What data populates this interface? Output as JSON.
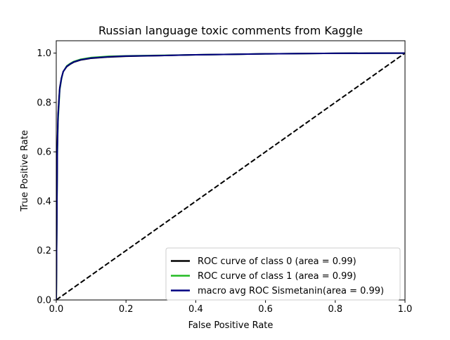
{
  "chart_data": {
    "type": "line",
    "title": "Russian language toxic comments from Kaggle",
    "xlabel": "False Positive Rate",
    "ylabel": "True Positive Rate",
    "xlim": [
      0.0,
      1.0
    ],
    "ylim": [
      0.0,
      1.05
    ],
    "xticks": [
      0.0,
      0.2,
      0.4,
      0.6,
      0.8,
      1.0
    ],
    "yticks": [
      0.0,
      0.2,
      0.4,
      0.6,
      0.8,
      1.0
    ],
    "xtick_labels": [
      "0.0",
      "0.2",
      "0.4",
      "0.6",
      "0.8",
      "1.0"
    ],
    "ytick_labels": [
      "0.0",
      "0.2",
      "0.4",
      "0.6",
      "0.8",
      "1.0"
    ],
    "grid": false,
    "legend_position": "lower-right",
    "series": [
      {
        "name": "ROC curve of class 0 (area = 0.99)",
        "color": "#000000",
        "dash": "solid",
        "x": [
          0.0,
          0.003,
          0.005,
          0.008,
          0.01,
          0.015,
          0.02,
          0.03,
          0.04,
          0.05,
          0.07,
          0.1,
          0.15,
          0.2,
          0.3,
          0.4,
          0.5,
          0.6,
          0.7,
          0.8,
          0.9,
          1.0
        ],
        "y": [
          0.0,
          0.62,
          0.75,
          0.82,
          0.86,
          0.9,
          0.925,
          0.945,
          0.955,
          0.963,
          0.972,
          0.979,
          0.984,
          0.987,
          0.99,
          0.993,
          0.995,
          0.997,
          0.998,
          0.999,
          0.9995,
          1.0
        ]
      },
      {
        "name": "ROC curve of class 1 (area = 0.99)",
        "color": "#22bb22",
        "dash": "solid",
        "x": [
          0.0,
          0.003,
          0.005,
          0.008,
          0.01,
          0.015,
          0.02,
          0.03,
          0.04,
          0.05,
          0.07,
          0.1,
          0.15,
          0.2,
          0.3,
          0.4,
          0.5,
          0.6,
          0.7,
          0.8,
          0.9,
          1.0
        ],
        "y": [
          0.0,
          0.58,
          0.72,
          0.8,
          0.85,
          0.895,
          0.925,
          0.948,
          0.958,
          0.966,
          0.975,
          0.982,
          0.987,
          0.989,
          0.991,
          0.993,
          0.995,
          0.997,
          0.998,
          0.999,
          0.9995,
          1.0
        ]
      },
      {
        "name": "macro avg ROC Sismetanin(area = 0.99)",
        "color": "#000080",
        "dash": "solid",
        "x": [
          0.0,
          0.003,
          0.005,
          0.008,
          0.01,
          0.015,
          0.02,
          0.03,
          0.04,
          0.05,
          0.07,
          0.1,
          0.15,
          0.2,
          0.3,
          0.4,
          0.5,
          0.6,
          0.7,
          0.8,
          0.9,
          1.0
        ],
        "y": [
          0.0,
          0.6,
          0.74,
          0.81,
          0.855,
          0.898,
          0.925,
          0.946,
          0.956,
          0.964,
          0.973,
          0.98,
          0.985,
          0.988,
          0.99,
          0.993,
          0.995,
          0.997,
          0.998,
          0.999,
          0.9995,
          1.0
        ]
      },
      {
        "name": "",
        "color": "#000000",
        "dash": "dashed",
        "x": [
          0.0,
          1.0
        ],
        "y": [
          0.0,
          1.0
        ]
      }
    ]
  }
}
